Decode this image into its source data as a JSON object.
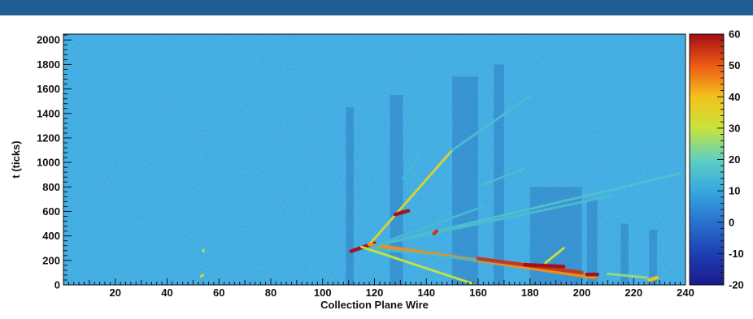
{
  "header": {
    "bar_color": "#1f5e92"
  },
  "chart_data": {
    "type": "heatmap",
    "xlabel": "Collection Plane Wire",
    "ylabel": "t (ticks)",
    "xlim": [
      0,
      240
    ],
    "ylim": [
      0,
      2048
    ],
    "x_ticks": [
      20,
      40,
      60,
      80,
      100,
      120,
      140,
      160,
      180,
      200,
      220,
      240
    ],
    "y_ticks": [
      0,
      200,
      400,
      600,
      800,
      1000,
      1200,
      1400,
      1600,
      1800,
      2000
    ],
    "colorbar": {
      "range": [
        -20,
        60
      ],
      "ticks": [
        -20,
        -10,
        0,
        10,
        20,
        30,
        40,
        50,
        60
      ],
      "colors": [
        "#1a1a8a",
        "#1e3fb5",
        "#2a72cf",
        "#36a8e0",
        "#5fd0c0",
        "#c8e33a",
        "#f2c21c",
        "#ef5a14",
        "#a30d13"
      ]
    },
    "background_value": 10,
    "tracks": [
      {
        "from": [
          111,
          275
        ],
        "to": [
          120,
          340
        ],
        "value": 60
      },
      {
        "from": [
          118,
          330
        ],
        "to": [
          150,
          1100
        ],
        "value": 35
      },
      {
        "from": [
          150,
          1100
        ],
        "to": [
          180,
          1540
        ],
        "value": 15
      },
      {
        "from": [
          118,
          330
        ],
        "to": [
          205,
          60
        ],
        "value": 45
      },
      {
        "from": [
          120,
          320
        ],
        "to": [
          238,
          910
        ],
        "value": 16
      },
      {
        "from": [
          120,
          320
        ],
        "to": [
          212,
          730
        ],
        "value": 15
      },
      {
        "from": [
          120,
          320
        ],
        "to": [
          162,
          640
        ],
        "value": 14
      },
      {
        "from": [
          118,
          300
        ],
        "to": [
          195,
          120
        ],
        "value": 14
      },
      {
        "from": [
          115,
          310
        ],
        "to": [
          158,
          10
        ],
        "value": 30
      },
      {
        "from": [
          160,
          215
        ],
        "to": [
          200,
          100
        ],
        "value": 55
      },
      {
        "from": [
          178,
          165
        ],
        "to": [
          193,
          150
        ],
        "value": 60
      },
      {
        "from": [
          193,
          300
        ],
        "to": [
          186,
          180
        ],
        "value": 30
      },
      {
        "from": [
          162,
          820
        ],
        "to": [
          178,
          950
        ],
        "value": 15
      },
      {
        "from": [
          131,
          870
        ],
        "to": [
          138,
          1070
        ],
        "value": 14
      },
      {
        "from": [
          134,
          1270
        ],
        "to": [
          136,
          1380
        ],
        "value": 13
      },
      {
        "from": [
          128,
          575
        ],
        "to": [
          133,
          605
        ],
        "value": 60
      },
      {
        "from": [
          143,
          420
        ],
        "to": [
          144,
          440
        ],
        "value": 55
      },
      {
        "from": [
          202,
          85
        ],
        "to": [
          206,
          85
        ],
        "value": 60
      },
      {
        "from": [
          210,
          90
        ],
        "to": [
          225,
          60
        ],
        "value": 25
      },
      {
        "from": [
          226,
          40
        ],
        "to": [
          229,
          60
        ],
        "value": 40
      },
      {
        "from": [
          53,
          70
        ],
        "to": [
          54,
          80
        ],
        "value": 35
      },
      {
        "from": [
          54,
          275
        ],
        "to": [
          54,
          285
        ],
        "value": 30
      },
      {
        "from": [
          96,
          800
        ],
        "to": [
          96,
          820
        ],
        "value": 14
      }
    ],
    "shadow_bands": [
      {
        "x_range": [
          109,
          112
        ],
        "y_range": [
          0,
          1450
        ]
      },
      {
        "x_range": [
          126,
          131
        ],
        "y_range": [
          0,
          1550
        ]
      },
      {
        "x_range": [
          150,
          160
        ],
        "y_range": [
          0,
          1700
        ]
      },
      {
        "x_range": [
          166,
          170
        ],
        "y_range": [
          0,
          1800
        ]
      },
      {
        "x_range": [
          180,
          200
        ],
        "y_range": [
          0,
          800
        ]
      },
      {
        "x_range": [
          202,
          206
        ],
        "y_range": [
          0,
          700
        ]
      },
      {
        "x_range": [
          215,
          218
        ],
        "y_range": [
          0,
          500
        ]
      },
      {
        "x_range": [
          226,
          229
        ],
        "y_range": [
          0,
          450
        ]
      }
    ]
  }
}
